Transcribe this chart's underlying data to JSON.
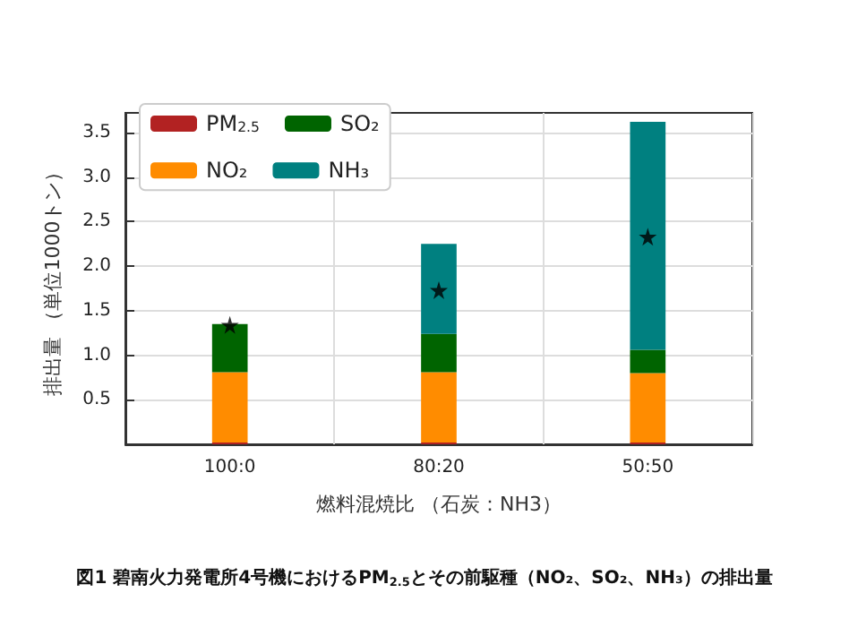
{
  "chart_data": {
    "type": "bar",
    "stacked": true,
    "title": "図1 碧南火力発電所4号機におけるPM$_{2.5}$とその前駆種（NO₂、SO₂、NH₃）の排出量",
    "xlabel": "燃料混焼比 （石炭：NH3）",
    "ylabel": "排出量 （単位1000トン）",
    "categories": [
      "100:0",
      "80:20",
      "50:50"
    ],
    "series": [
      {
        "name": "PM$_{2.5}$",
        "color": "#b22222",
        "values": [
          0.02,
          0.02,
          0.02
        ]
      },
      {
        "name": "NO₂",
        "color": "#ff8c00",
        "values": [
          0.79,
          0.79,
          0.78
        ]
      },
      {
        "name": "SO₂",
        "color": "#006400",
        "values": [
          0.54,
          0.43,
          0.26
        ]
      },
      {
        "name": "NH₃",
        "color": "#008080",
        "values": [
          null,
          1.01,
          2.56
        ]
      },
      {
        "type": "scatter",
        "marker": "star",
        "color": "#000000",
        "x": [
          "100:0",
          "80:20",
          "50:50"
        ],
        "values": [
          1.34,
          1.73,
          2.33
        ]
      }
    ],
    "ylim": [
      0,
      3.72
    ],
    "yticks": [
      0.5,
      {
        "value": 1,
        "label": "1.0"
      },
      1.5,
      {
        "value": 2,
        "label": "2.0"
      },
      2.5,
      {
        "value": 3,
        "label": "3.0"
      },
      3.5
    ],
    "grid": true,
    "legend": "top left"
  }
}
